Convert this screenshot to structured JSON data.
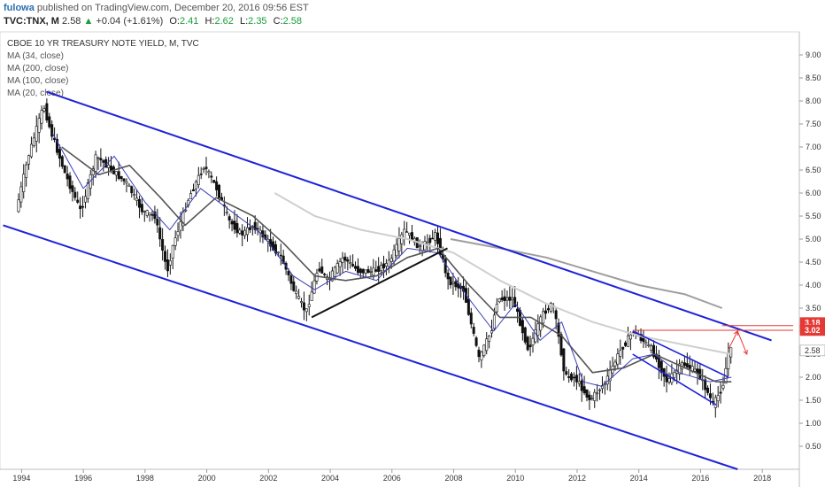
{
  "header": {
    "author": "fulowa",
    "published": "published on TradingView.com, December 20, 2016 09:56 EST",
    "symbol": "TVC:TNX, M",
    "last": "2.58",
    "change": "+0.04 (+1.61%)",
    "o_label": "O:",
    "o": "2.41",
    "h_label": "H:",
    "h": "2.62",
    "l_label": "L:",
    "l": "2.35",
    "c_label": "C:",
    "c": "2.58"
  },
  "chart_data": {
    "type": "candlestick",
    "title": "CBOE 10 YR TREASURY NOTE YIELD, M, TVC",
    "legend": [
      "MA (34, close)",
      "MA (200, close)",
      "MA (100, close)",
      "MA (20, close)"
    ],
    "x_ticks": [
      "1994",
      "1996",
      "1998",
      "2000",
      "2002",
      "2004",
      "2006",
      "2008",
      "2010",
      "2012",
      "2014",
      "2016",
      "2018"
    ],
    "y_ticks": [
      "0.50",
      "1.00",
      "1.50",
      "2.00",
      "2.50",
      "3.00",
      "3.50",
      "4.00",
      "4.50",
      "5.00",
      "5.50",
      "6.00",
      "6.50",
      "7.00",
      "7.50",
      "8.00",
      "8.50",
      "9.00"
    ],
    "ylim": [
      0.0,
      9.5
    ],
    "xlim": [
      1993.3,
      2019.2
    ],
    "price_tags": [
      {
        "label": "3.18",
        "value": 3.18,
        "color": "#e53935"
      },
      {
        "label": "3.02",
        "value": 3.02,
        "color": "#e53935"
      },
      {
        "label": "2.58",
        "value": 2.58,
        "color": "#ffffff"
      }
    ],
    "price_path": [
      [
        1993.9,
        5.6
      ],
      [
        1994.3,
        6.8
      ],
      [
        1994.8,
        7.9
      ],
      [
        1995.0,
        7.4
      ],
      [
        1995.5,
        6.4
      ],
      [
        1996.0,
        5.6
      ],
      [
        1996.5,
        6.8
      ],
      [
        1997.0,
        6.5
      ],
      [
        1997.5,
        6.2
      ],
      [
        1998.0,
        5.6
      ],
      [
        1998.4,
        5.5
      ],
      [
        1998.8,
        4.3
      ],
      [
        1999.0,
        4.9
      ],
      [
        1999.5,
        5.9
      ],
      [
        2000.0,
        6.6
      ],
      [
        2000.4,
        6.1
      ],
      [
        2000.8,
        5.4
      ],
      [
        2001.2,
        5.1
      ],
      [
        2001.6,
        5.3
      ],
      [
        2002.0,
        5.0
      ],
      [
        2002.5,
        4.6
      ],
      [
        2002.9,
        3.9
      ],
      [
        2003.3,
        3.4
      ],
      [
        2003.7,
        4.4
      ],
      [
        2004.0,
        4.1
      ],
      [
        2004.5,
        4.6
      ],
      [
        2005.0,
        4.3
      ],
      [
        2005.5,
        4.3
      ],
      [
        2006.0,
        4.5
      ],
      [
        2006.5,
        5.2
      ],
      [
        2007.0,
        4.8
      ],
      [
        2007.5,
        5.1
      ],
      [
        2007.9,
        4.1
      ],
      [
        2008.4,
        3.9
      ],
      [
        2008.9,
        2.4
      ],
      [
        2009.3,
        3.0
      ],
      [
        2009.5,
        3.7
      ],
      [
        2010.0,
        3.7
      ],
      [
        2010.5,
        2.6
      ],
      [
        2011.0,
        3.4
      ],
      [
        2011.3,
        3.6
      ],
      [
        2011.7,
        2.0
      ],
      [
        2012.0,
        2.0
      ],
      [
        2012.5,
        1.5
      ],
      [
        2013.0,
        1.9
      ],
      [
        2013.5,
        2.6
      ],
      [
        2013.9,
        3.0
      ],
      [
        2014.5,
        2.6
      ],
      [
        2015.0,
        1.9
      ],
      [
        2015.5,
        2.3
      ],
      [
        2016.0,
        2.1
      ],
      [
        2016.5,
        1.4
      ],
      [
        2016.8,
        1.8
      ],
      [
        2017.0,
        2.58
      ]
    ],
    "ma34": [
      [
        1995.3,
        7.0
      ],
      [
        1996.5,
        6.4
      ],
      [
        1997.5,
        6.6
      ],
      [
        1998.5,
        5.9
      ],
      [
        1999.3,
        5.3
      ],
      [
        2000.3,
        5.9
      ],
      [
        2001.5,
        5.5
      ],
      [
        2002.5,
        4.9
      ],
      [
        2003.5,
        4.2
      ],
      [
        2004.5,
        4.1
      ],
      [
        2005.5,
        4.2
      ],
      [
        2006.5,
        4.6
      ],
      [
        2007.5,
        4.8
      ],
      [
        2008.5,
        4.0
      ],
      [
        2009.5,
        3.3
      ],
      [
        2010.5,
        3.3
      ],
      [
        2011.5,
        2.9
      ],
      [
        2012.5,
        2.1
      ],
      [
        2013.5,
        2.2
      ],
      [
        2014.5,
        2.5
      ],
      [
        2015.5,
        2.2
      ],
      [
        2016.5,
        1.9
      ],
      [
        2017.0,
        1.9
      ]
    ],
    "ma20": [
      [
        1995.0,
        7.3
      ],
      [
        1996.0,
        6.1
      ],
      [
        1997.0,
        6.8
      ],
      [
        1998.0,
        5.8
      ],
      [
        1998.8,
        5.2
      ],
      [
        1999.8,
        6.1
      ],
      [
        2000.8,
        5.6
      ],
      [
        2001.8,
        5.1
      ],
      [
        2002.8,
        4.2
      ],
      [
        2003.5,
        3.9
      ],
      [
        2004.5,
        4.3
      ],
      [
        2005.5,
        4.1
      ],
      [
        2006.5,
        4.8
      ],
      [
        2007.5,
        4.7
      ],
      [
        2008.5,
        3.7
      ],
      [
        2009.3,
        3.0
      ],
      [
        2010.0,
        3.6
      ],
      [
        2010.8,
        2.8
      ],
      [
        2011.5,
        3.2
      ],
      [
        2012.2,
        1.9
      ],
      [
        2012.8,
        1.8
      ],
      [
        2013.8,
        2.4
      ],
      [
        2014.5,
        2.5
      ],
      [
        2015.3,
        2.1
      ],
      [
        2016.3,
        1.9
      ],
      [
        2017.0,
        2.0
      ]
    ],
    "ma100": [
      [
        2002.2,
        6.0
      ],
      [
        2003.5,
        5.5
      ],
      [
        2005.0,
        5.2
      ],
      [
        2006.5,
        5.0
      ],
      [
        2008.0,
        4.7
      ],
      [
        2009.5,
        4.1
      ],
      [
        2011.0,
        3.6
      ],
      [
        2012.5,
        3.2
      ],
      [
        2014.0,
        2.9
      ],
      [
        2015.5,
        2.7
      ],
      [
        2017.0,
        2.5
      ]
    ],
    "ma200": [
      [
        2007.9,
        5.0
      ],
      [
        2009.5,
        4.8
      ],
      [
        2011.0,
        4.6
      ],
      [
        2012.5,
        4.3
      ],
      [
        2014.0,
        4.0
      ],
      [
        2015.5,
        3.8
      ],
      [
        2016.7,
        3.5
      ]
    ],
    "channel_upper": [
      [
        1994.8,
        8.2
      ],
      [
        2018.3,
        2.8
      ]
    ],
    "channel_lower": [
      [
        1993.4,
        5.3
      ],
      [
        2017.2,
        0.0
      ]
    ],
    "support_line": [
      [
        2003.4,
        3.3
      ],
      [
        2007.8,
        4.8
      ]
    ],
    "wedge_upper": [
      [
        2013.8,
        3.0
      ],
      [
        2016.9,
        2.0
      ]
    ],
    "wedge_lower": [
      [
        2013.8,
        2.5
      ],
      [
        2016.5,
        1.4
      ]
    ],
    "target_line": {
      "from": 2013.8,
      "to": 2019.0,
      "value": 3.02
    },
    "arrow_up": [
      [
        2016.9,
        2.6
      ],
      [
        2017.2,
        3.0
      ]
    ],
    "arrow_down": [
      [
        2017.2,
        3.0
      ],
      [
        2017.5,
        2.5
      ]
    ]
  }
}
